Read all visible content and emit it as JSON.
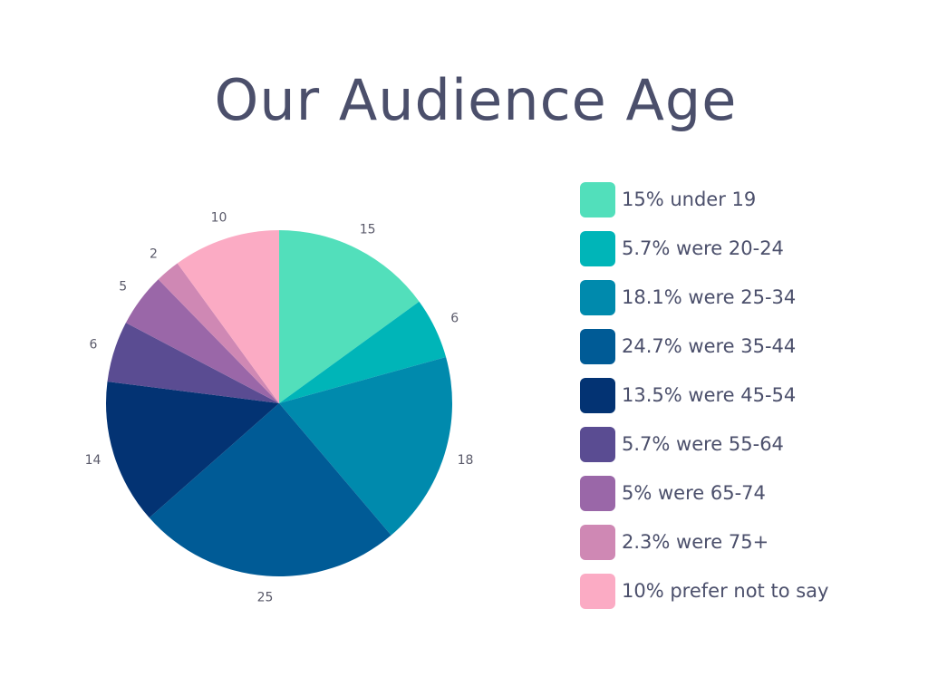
{
  "title": "Our Audience Age",
  "chart_data": {
    "type": "pie",
    "title": "Our Audience Age",
    "slices": [
      {
        "label": "15",
        "value": 15,
        "color": "#52dfbb",
        "legend": "15% under 19"
      },
      {
        "label": "6",
        "value": 5.7,
        "color": "#00b5b8",
        "legend": "5.7% were 20-24"
      },
      {
        "label": "18",
        "value": 18.1,
        "color": "#008aad",
        "legend": "18.1% were 25-34"
      },
      {
        "label": "25",
        "value": 24.7,
        "color": "#005b96",
        "legend": "24.7% were 35-44"
      },
      {
        "label": "14",
        "value": 13.5,
        "color": "#033373",
        "legend": "13.5% were 45-54"
      },
      {
        "label": "6",
        "value": 5.7,
        "color": "#5a4c92",
        "legend": "5.7% were 55-64"
      },
      {
        "label": "5",
        "value": 5,
        "color": "#9a67a8",
        "legend": "5% were 65-74"
      },
      {
        "label": "2",
        "value": 2.3,
        "color": "#cf88b4",
        "legend": "2.3% were 75+"
      },
      {
        "label": "10",
        "value": 10,
        "color": "#fbabc4",
        "legend": "10% prefer not to say"
      }
    ],
    "legend_position": "right"
  }
}
